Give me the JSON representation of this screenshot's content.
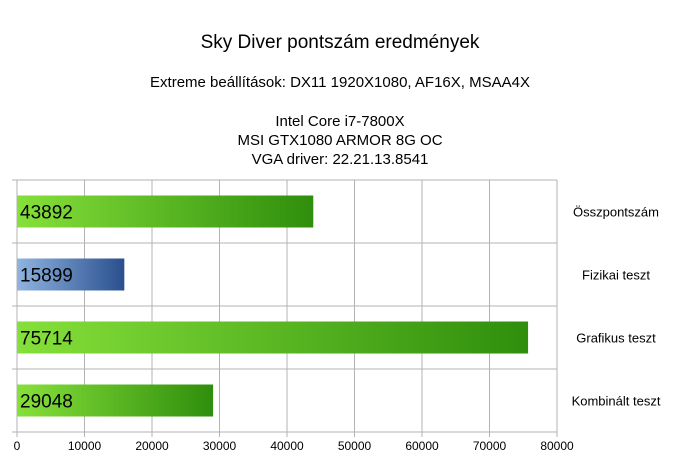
{
  "chart_data": {
    "type": "bar",
    "orientation": "horizontal",
    "title": "Sky Diver pontszám eredmények",
    "subtitle_lines": [
      "Extreme beállítások: DX11 1920X1080, AF16X, MSAA4X",
      "",
      "Intel Core i7-7800X",
      "MSI GTX1080 ARMOR 8G OC",
      "VGA driver: 22.21.13.8541"
    ],
    "categories": [
      "Összpontszám",
      "Fizikai teszt",
      "Grafikus teszt",
      "Kombinált teszt"
    ],
    "values": [
      43892,
      15899,
      75714,
      29048
    ],
    "bar_colors": [
      "#5fbf1a",
      "#3a6aa8",
      "#5fbf1a",
      "#5fbf1a"
    ],
    "xlim": [
      0,
      80000
    ],
    "xticks": [
      "0",
      "10000",
      "20000",
      "30000",
      "40000",
      "50000",
      "60000",
      "70000",
      "80000"
    ],
    "xlabel": "",
    "ylabel": "",
    "grid": true,
    "legend": "none"
  }
}
